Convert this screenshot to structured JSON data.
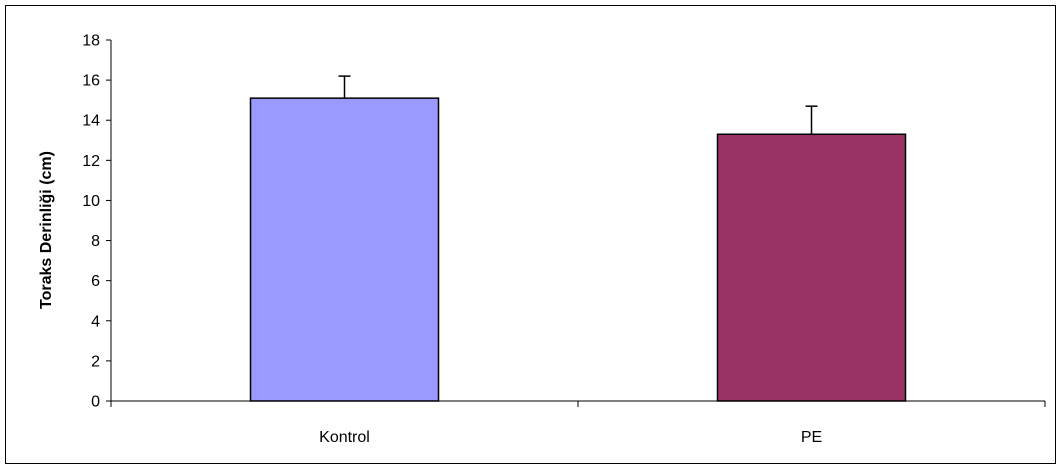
{
  "chart_data": {
    "type": "bar",
    "title": "",
    "xlabel": "",
    "ylabel": "Toraks Derinliği (cm)",
    "categories": [
      "Kontrol",
      "PE"
    ],
    "values": [
      15.1,
      13.3
    ],
    "error_plus": [
      1.1,
      1.4
    ],
    "ylim": [
      0,
      18
    ],
    "ytick_step": 2,
    "yticks": [
      "0",
      "2",
      "4",
      "6",
      "8",
      "10",
      "12",
      "14",
      "16",
      "18"
    ],
    "bar_colors": [
      "#9999ff",
      "#993366"
    ],
    "grid": false,
    "legend": "none"
  }
}
